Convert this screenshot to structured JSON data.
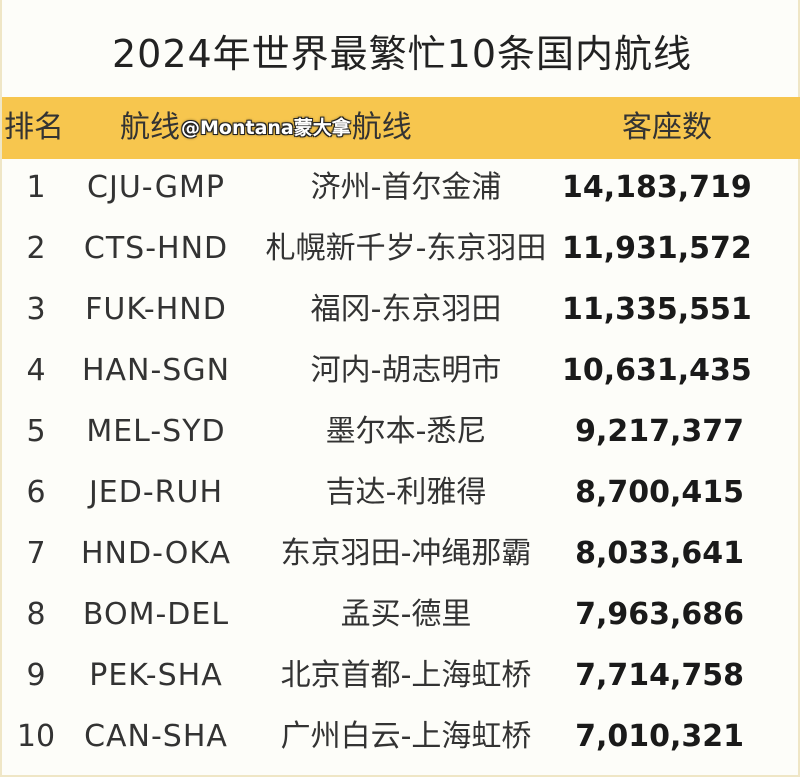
{
  "title": "2024年世界最繁忙10条国内航线",
  "header": {
    "rank": "排名",
    "route_prefix": "航线",
    "watermark": "@Montana蒙大拿",
    "route_suffix": "航线",
    "seats": "客座数"
  },
  "rows": [
    {
      "rank": "1",
      "code": "CJU-GMP",
      "route": "济州-首尔金浦",
      "seats": "14,183,719"
    },
    {
      "rank": "2",
      "code": "CTS-HND",
      "route": "札幌新千岁-东京羽田",
      "seats": "11,931,572"
    },
    {
      "rank": "3",
      "code": "FUK-HND",
      "route": "福冈-东京羽田",
      "seats": "11,335,551"
    },
    {
      "rank": "4",
      "code": "HAN-SGN",
      "route": "河内-胡志明市",
      "seats": "10,631,435"
    },
    {
      "rank": "5",
      "code": "MEL-SYD",
      "route": "墨尔本-悉尼",
      "seats": "9,217,377"
    },
    {
      "rank": "6",
      "code": "JED-RUH",
      "route": "吉达-利雅得",
      "seats": "8,700,415"
    },
    {
      "rank": "7",
      "code": "HND-OKA",
      "route": "东京羽田-冲绳那霸",
      "seats": "8,033,641"
    },
    {
      "rank": "8",
      "code": "BOM-DEL",
      "route": "孟买-德里",
      "seats": "7,963,686"
    },
    {
      "rank": "9",
      "code": "PEK-SHA",
      "route": "北京首都-上海虹桥",
      "seats": "7,714,758"
    },
    {
      "rank": "10",
      "code": "CAN-SHA",
      "route": "广州白云-上海虹桥",
      "seats": "7,010,321"
    }
  ],
  "colors": {
    "header_bg": "#f7c64e",
    "page_bg": "#fdfdf9"
  }
}
